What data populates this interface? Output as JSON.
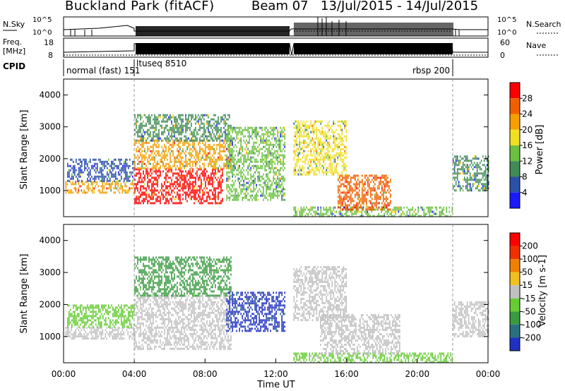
{
  "header": {
    "station": "Buckland Park (fitACF)",
    "beam": "Beam 07",
    "dates": "13/Jul/2015 - 14/Jul/2015"
  },
  "top_panels": {
    "nsky_label": "N.Sky",
    "nsearch_label": "N.Search",
    "noise_ticks": [
      "10^5",
      "10^0"
    ],
    "freq_label_1": "Freq.",
    "freq_label_2": "[MHz]",
    "freq_ticks": [
      "18",
      "8"
    ],
    "nave_label": "Nave",
    "nave_ticks": [
      "60",
      "0"
    ],
    "cpid_label": "CPID",
    "cpid_segments": [
      "normal (fast) 151",
      "ltuseq 8510",
      "rbsp 200"
    ]
  },
  "chart_data": [
    {
      "type": "heatmap",
      "name": "Power",
      "xlabel": "",
      "ylabel": "Slant Range [km]",
      "xlim": [
        0,
        24
      ],
      "ylim": [
        180,
        4500
      ],
      "y_ticks": [
        1000,
        2000,
        3000,
        4000
      ],
      "colorbar_label": "Power [dB]",
      "colorbar_ticks": [
        "28",
        "24",
        "20",
        "16",
        "12",
        "8",
        "4"
      ],
      "colors": [
        "#1a1aff",
        "#2a50a8",
        "#3f8a55",
        "#6ac040",
        "#f0e020",
        "#f5a000",
        "#f06000",
        "#ff0000"
      ],
      "regions": [
        {
          "x": [
            0.1,
            4.0
          ],
          "y": [
            950,
            1300
          ],
          "value": 22
        },
        {
          "x": [
            0.2,
            4.0
          ],
          "y": [
            1300,
            2000
          ],
          "value": 6
        },
        {
          "x": [
            4.0,
            9.0
          ],
          "y": [
            600,
            1700
          ],
          "value": 28
        },
        {
          "x": [
            4.0,
            9.5
          ],
          "y": [
            1700,
            2600
          ],
          "value": 20
        },
        {
          "x": [
            4.0,
            9.5
          ],
          "y": [
            2600,
            3400
          ],
          "value": 10
        },
        {
          "x": [
            9.2,
            12.5
          ],
          "y": [
            700,
            3000
          ],
          "value": 12
        },
        {
          "x": [
            13.0,
            22.0
          ],
          "y": [
            200,
            500
          ],
          "value": 12
        },
        {
          "x": [
            15.5,
            18.5
          ],
          "y": [
            400,
            1500
          ],
          "value": 26
        },
        {
          "x": [
            13.0,
            16.0
          ],
          "y": [
            1500,
            3200
          ],
          "value": 16
        },
        {
          "x": [
            22.0,
            24.0
          ],
          "y": [
            1000,
            2100
          ],
          "value": 10
        }
      ]
    },
    {
      "type": "heatmap",
      "name": "Velocity",
      "xlabel": "Time UT",
      "ylabel": "Slant Range [km]",
      "xlim": [
        0,
        24
      ],
      "ylim": [
        180,
        4500
      ],
      "x_ticks": [
        "00:00",
        "04:00",
        "08:00",
        "12:00",
        "16:00",
        "20:00",
        "00:00"
      ],
      "y_ticks": [
        1000,
        2000,
        3000,
        4000
      ],
      "colorbar_label": "Velocity [m s-1]",
      "colorbar_ticks": [
        "200",
        "100",
        "50",
        "15",
        "-15",
        "-50",
        "-100",
        "-200"
      ],
      "colors": [
        "#2030c0",
        "#2a7080",
        "#3a9a40",
        "#66cc33",
        "#c0c0c0",
        "#f0c020",
        "#f08000",
        "#f03000",
        "#ff0000"
      ],
      "regions": [
        {
          "x": [
            0.1,
            4.0
          ],
          "y": [
            950,
            1300
          ],
          "value": 0
        },
        {
          "x": [
            0.2,
            4.0
          ],
          "y": [
            1300,
            2000
          ],
          "value": 30
        },
        {
          "x": [
            4.0,
            9.5
          ],
          "y": [
            600,
            2300
          ],
          "value": 0
        },
        {
          "x": [
            4.0,
            9.5
          ],
          "y": [
            2300,
            3500
          ],
          "value": 60
        },
        {
          "x": [
            9.2,
            12.5
          ],
          "y": [
            1200,
            2400
          ],
          "value": 200
        },
        {
          "x": [
            13.0,
            22.0
          ],
          "y": [
            200,
            500
          ],
          "value": 20
        },
        {
          "x": [
            14.5,
            19.0
          ],
          "y": [
            500,
            1700
          ],
          "value": 0
        },
        {
          "x": [
            13.0,
            16.0
          ],
          "y": [
            1500,
            3200
          ],
          "value": 0
        },
        {
          "x": [
            22.0,
            24.0
          ],
          "y": [
            1000,
            2100
          ],
          "value": 0
        }
      ]
    }
  ]
}
